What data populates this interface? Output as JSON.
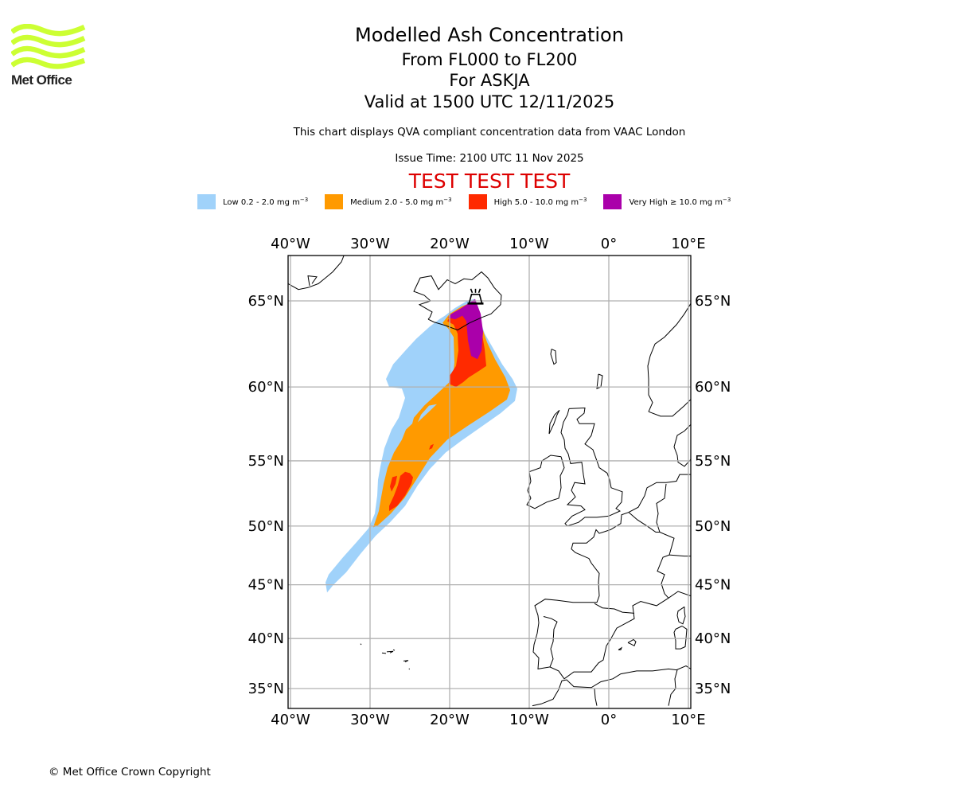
{
  "logo": {
    "name": "Met Office",
    "color": "#ccff33"
  },
  "header": {
    "title": "Modelled Ash Concentration",
    "levels": "From FL000 to FL200",
    "volcano_line": "For ASKJA",
    "valid": "Valid at 1500 UTC 12/11/2025",
    "subtitle": "This chart displays QVA compliant concentration data from VAAC London",
    "issue_time": "Issue Time: 2100 UTC 11 Nov 2025",
    "test_banner": "TEST TEST TEST",
    "test_color": "#dd0000"
  },
  "legend": [
    {
      "label": "Low 0.2 - 2.0 mg m",
      "unit_exp": "−3",
      "color": "#a0d2fa"
    },
    {
      "label": "Medium 2.0 - 5.0 mg m",
      "unit_exp": "−3",
      "color": "#ff9a00"
    },
    {
      "label": "High 5.0 - 10.0 mg m",
      "unit_exp": "−3",
      "color": "#ff2a00"
    },
    {
      "label": "Very High  ≥  10.0 mg m",
      "unit_exp": "−3",
      "color": "#aa00aa"
    }
  ],
  "map": {
    "volcano": {
      "name": "ASKJA",
      "icon": "volcano-icon",
      "lon": -16.75,
      "lat": 65.05
    },
    "extent": {
      "lon_min": -40.3,
      "lon_max": 10.3,
      "lat_min": 33.2,
      "lat_max": 67.5
    },
    "lon_ticks": [
      {
        "value": -40,
        "label": "40°W"
      },
      {
        "value": -30,
        "label": "30°W"
      },
      {
        "value": -20,
        "label": "20°W"
      },
      {
        "value": -10,
        "label": "10°W"
      },
      {
        "value": 0,
        "label": "0°"
      },
      {
        "value": 10,
        "label": "10°E"
      }
    ],
    "lat_ticks": [
      {
        "value": 65,
        "label": "65°N"
      },
      {
        "value": 60,
        "label": "60°N"
      },
      {
        "value": 55,
        "label": "55°N"
      },
      {
        "value": 50,
        "label": "50°N"
      },
      {
        "value": 45,
        "label": "45°N"
      },
      {
        "value": 40,
        "label": "40°N"
      },
      {
        "value": 35,
        "label": "35°N"
      }
    ],
    "grid_color": "#b0b0b0"
  },
  "footer": {
    "copyright": "© Met Office Crown Copyright"
  }
}
